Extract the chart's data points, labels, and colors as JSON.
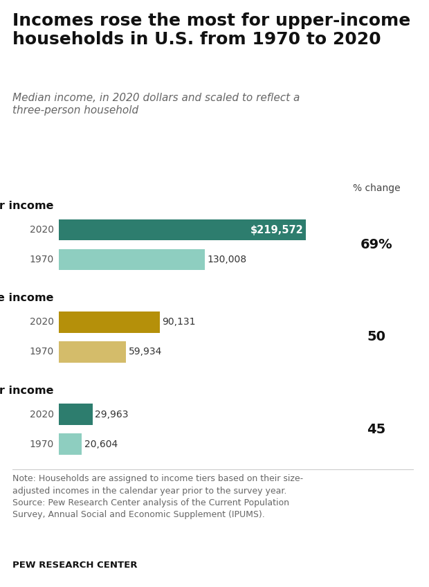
{
  "title": "Incomes rose the most for upper-income\nhouseholds in U.S. from 1970 to 2020",
  "subtitle": "Median income, in 2020 dollars and scaled to reflect a\nthree-person household",
  "categories": [
    {
      "label": "Upper income",
      "year2020": 219572,
      "year1970": 130008,
      "pct_change": "69%",
      "color2020": "#2d7d6e",
      "color1970": "#8ecec0"
    },
    {
      "label": "Middle income",
      "year2020": 90131,
      "year1970": 59934,
      "pct_change": "50",
      "color2020": "#b5900a",
      "color1970": "#d4bc6a"
    },
    {
      "label": "Lower income",
      "year2020": 29963,
      "year1970": 20604,
      "pct_change": "45",
      "color2020": "#2d7d6e",
      "color1970": "#8ecec0"
    }
  ],
  "max_value": 240000,
  "note": "Note: Households are assigned to income tiers based on their size-\nadjusted incomes in the calendar year prior to the survey year.\nSource: Pew Research Center analysis of the Current Population\nSurvey, Annual Social and Economic Supplement (IPUMS).",
  "source_label": "PEW RESEARCH CENTER",
  "pct_change_bg": "#e8e8dc",
  "pct_change_header": "% change",
  "background": "#ffffff",
  "title_fontsize": 18,
  "subtitle_fontsize": 11,
  "label_fontsize": 10,
  "group_fontsize": 11.5,
  "value_fontsize": 10,
  "pct_fontsize": 14,
  "note_fontsize": 9
}
